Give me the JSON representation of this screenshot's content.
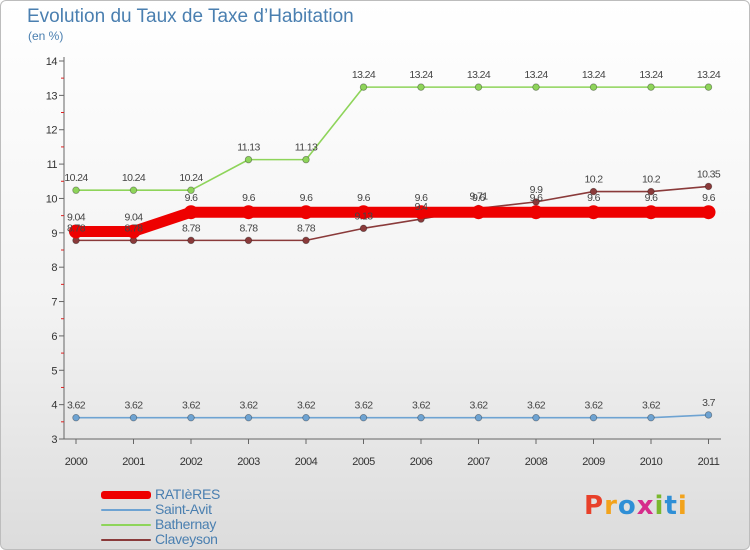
{
  "title": "Evolution du Taux de Taxe d’Habitation",
  "subtitle": "(en %)",
  "logo": {
    "text": "Proxiti",
    "letters": [
      "P",
      "r",
      "o",
      "x",
      "i",
      "t",
      "i"
    ],
    "colors": [
      "#e8402a",
      "#f2a31c",
      "#2f8fd6",
      "#d62c8b",
      "#7ab82e",
      "#2f8fd6",
      "#f2a31c"
    ]
  },
  "chart_data": {
    "type": "line",
    "title": "Evolution du Taux de Taxe d’Habitation",
    "subtitle": "(en %)",
    "xlabel": "",
    "ylabel": "",
    "x": [
      "2000",
      "2001",
      "2002",
      "2003",
      "2004",
      "2005",
      "2006",
      "2007",
      "2008",
      "2009",
      "2010",
      "2011"
    ],
    "ylim": [
      3,
      14
    ],
    "yticks": [
      3,
      4,
      5,
      6,
      7,
      8,
      9,
      10,
      11,
      12,
      13,
      14
    ],
    "grid": false,
    "legend_position": "bottom-left",
    "series": [
      {
        "name": "RATIèRES",
        "color": "#ee0000",
        "values": [
          9.04,
          9.04,
          9.6,
          9.6,
          9.6,
          9.6,
          9.6,
          9.6,
          9.6,
          9.6,
          9.6,
          9.6
        ],
        "labels": [
          "9.04",
          "9.04",
          "9.6",
          "9.6",
          "9.6",
          "9.6",
          "9.6",
          "9.6",
          "9.6",
          "9.6",
          "9.6",
          "9.6"
        ]
      },
      {
        "name": "Saint-Avit",
        "color": "#6ea3d2",
        "values": [
          3.62,
          3.62,
          3.62,
          3.62,
          3.62,
          3.62,
          3.62,
          3.62,
          3.62,
          3.62,
          3.62,
          3.7
        ],
        "labels": [
          "3.62",
          "3.62",
          "3.62",
          "3.62",
          "3.62",
          "3.62",
          "3.62",
          "3.62",
          "3.62",
          "3.62",
          "3.62",
          "3.7"
        ]
      },
      {
        "name": "Bathernay",
        "color": "#8ed45a",
        "values": [
          10.24,
          10.24,
          10.24,
          11.13,
          11.13,
          13.24,
          13.24,
          13.24,
          13.24,
          13.24,
          13.24,
          13.24
        ],
        "labels": [
          "10.24",
          "10.24",
          "10.24",
          "11.13",
          "11.13",
          "13.24",
          "13.24",
          "13.24",
          "13.24",
          "13.24",
          "13.24",
          "13.24"
        ]
      },
      {
        "name": "Claveyson",
        "color": "#8a3a3a",
        "values": [
          8.78,
          8.78,
          8.78,
          8.78,
          8.78,
          9.13,
          9.4,
          9.71,
          9.9,
          10.2,
          10.2,
          10.35
        ],
        "labels": [
          "8.78",
          "8.78",
          "8.78",
          "8.78",
          "8.78",
          "9.13",
          "9.4",
          "9.71",
          "9.9",
          "10.2",
          "10.2",
          "10.35"
        ]
      }
    ]
  }
}
